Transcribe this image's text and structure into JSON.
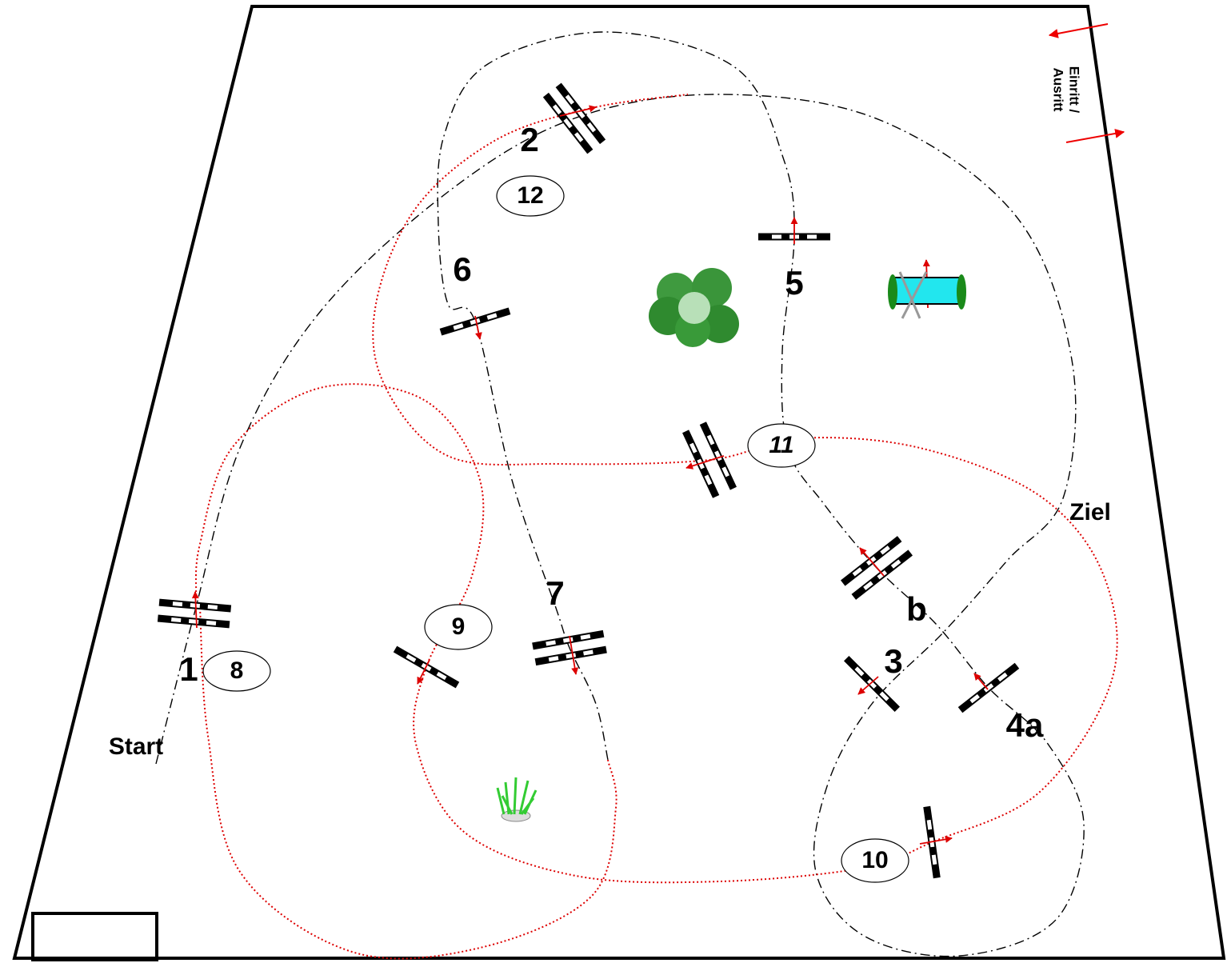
{
  "gate": {
    "line1": "Einritt /",
    "line2": "Ausritt"
  },
  "start": "Start",
  "finish": "Ziel",
  "fences": [
    "1",
    "2",
    "3",
    "4a",
    "5",
    "6",
    "7",
    "b"
  ],
  "rounds": [
    "8",
    "9",
    "10",
    "11",
    "12"
  ]
}
